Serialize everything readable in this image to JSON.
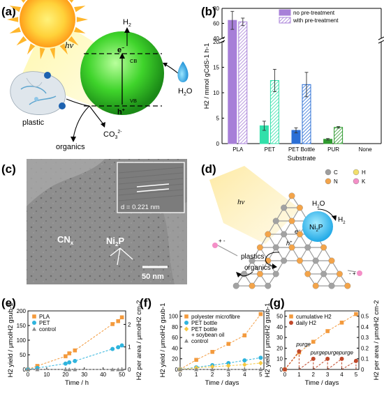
{
  "panels": {
    "a": {
      "label": "(a)",
      "hv": "hv",
      "h2": "H",
      "h2_sub": "2",
      "e": "e",
      "e_sup": "−",
      "cb": "CB",
      "vb": "VB",
      "h": "h",
      "h_sup": "+",
      "h2o": "H",
      "h2o_sub": "2",
      "h2o_tail": "O",
      "plastic": "plastic",
      "co3": "CO",
      "co3_sub": "3",
      "co3_sup": "2-",
      "organics": "organics"
    },
    "b": {
      "label": "(b)"
    },
    "c": {
      "label": "(c)",
      "cnx": "CN",
      "cnx_sub": "x",
      "ni2p": "Ni",
      "ni2p_sub": "2",
      "ni2p_tail": "P",
      "dspacing": "d = 0.221 nm",
      "scalebar": "50 nm"
    },
    "d": {
      "label": "(d)",
      "legend": [
        {
          "symbol": "C",
          "color": "#9e9e9e"
        },
        {
          "symbol": "H",
          "color": "#f2df6b"
        },
        {
          "symbol": "N",
          "color": "#f3a44a"
        },
        {
          "symbol": "K",
          "color": "#f48fc7"
        }
      ],
      "hv": "hv",
      "h2o": "H",
      "h2o_sub": "2",
      "h2o_tail": "O",
      "h2": "H",
      "h2_sub": "2",
      "ni2p": "Ni",
      "ni2p_sub": "2",
      "ni2p_tail": "P",
      "e": "e",
      "e_sup": "−",
      "h": "h",
      "h_sup": "+",
      "plastics": "plastics",
      "organics": "organics"
    },
    "e": {
      "label": "(e)"
    },
    "f": {
      "label": "(f)"
    },
    "g": {
      "label": "(g)",
      "purge": "purge"
    }
  },
  "chart_data": [
    {
      "id": "b",
      "type": "bar",
      "ylabel": "H2 / mmol gCdS-1 h-1",
      "xlabel": "Substrate",
      "categories": [
        "PLA",
        "PET",
        "PET Bottle",
        "PUR",
        "None"
      ],
      "y_break": [
        20,
        40
      ],
      "yticks": [
        0,
        5,
        10,
        15,
        20,
        40,
        60,
        80
      ],
      "series": [
        {
          "name": "no pre-treatment",
          "values": [
            64,
            3.5,
            2.6,
            0.85,
            0
          ],
          "errors": [
            12,
            0.9,
            0.5,
            0.15,
            0
          ]
        },
        {
          "name": "with pre-treatment",
          "values": [
            62,
            12.4,
            11.6,
            3.2,
            0
          ],
          "errors": [
            5,
            2.2,
            2.4,
            0.15,
            0
          ]
        }
      ],
      "colors": {
        "PLA": "#a77fd8",
        "PET": "#32e0aa",
        "PET Bottle": "#2b6fd6",
        "PUR": "#2f9a2f"
      }
    },
    {
      "id": "e",
      "type": "scatter",
      "xlabel": "Time / h",
      "ylabel": "H2 yield / μmolH2 gsub-1",
      "ylabel_right": "H2 per area / μmolH2 cm-2",
      "xlim": [
        0,
        52
      ],
      "ylim": [
        0,
        200
      ],
      "xticks": [
        0,
        10,
        20,
        30,
        40,
        50
      ],
      "yticks": [
        0,
        50,
        100,
        150,
        200
      ],
      "yticks_right": [
        0,
        1,
        2
      ],
      "series": [
        {
          "name": "PLA",
          "color": "#f39a3d",
          "marker": "square",
          "x": [
            0,
            5,
            20,
            22,
            25,
            45,
            48,
            50
          ],
          "y": [
            0,
            12,
            45,
            55,
            65,
            155,
            165,
            178
          ]
        },
        {
          "name": "PET",
          "color": "#2fb4dd",
          "marker": "circle",
          "x": [
            0,
            5,
            20,
            22,
            25,
            45,
            48,
            50
          ],
          "y": [
            0,
            5,
            20,
            24,
            29,
            70,
            76,
            82
          ]
        },
        {
          "name": "control",
          "color": "#8a8a8a",
          "marker": "triangle",
          "x": [
            0,
            5,
            20,
            22,
            25,
            45,
            48,
            50
          ],
          "y": [
            0,
            0,
            0,
            0,
            0,
            0,
            0,
            0
          ]
        }
      ]
    },
    {
      "id": "f",
      "type": "scatter",
      "xlabel": "Time / days",
      "ylabel": "H2 yield / μmolH2 gsub-1",
      "xlim": [
        0,
        5.2
      ],
      "ylim": [
        0,
        110
      ],
      "xticks": [
        0,
        1,
        2,
        3,
        4,
        5
      ],
      "yticks": [
        0,
        20,
        40,
        60,
        80,
        100
      ],
      "series": [
        {
          "name": "polyester microfibre",
          "color": "#f39a3d",
          "marker": "square",
          "x": [
            0,
            1,
            2,
            3,
            4,
            5
          ],
          "y": [
            0,
            18,
            33,
            48,
            64,
            104
          ]
        },
        {
          "name": "PET bottle",
          "color": "#2fb4dd",
          "marker": "circle",
          "x": [
            0,
            1,
            2,
            3,
            4,
            5
          ],
          "y": [
            0,
            4,
            8,
            12,
            17,
            22
          ]
        },
        {
          "name": "PET bottle + soybean oil",
          "color": "#f5c842",
          "marker": "diamond",
          "x": [
            0,
            1,
            2,
            3,
            4,
            5
          ],
          "y": [
            0,
            3,
            5,
            7,
            9,
            12
          ]
        },
        {
          "name": "control",
          "color": "#8a8a8a",
          "marker": "triangle",
          "x": [
            0,
            1,
            2,
            3,
            4,
            5
          ],
          "y": [
            0,
            0,
            0,
            0,
            0,
            0
          ]
        }
      ]
    },
    {
      "id": "g",
      "type": "scatter",
      "xlabel": "Time / days",
      "ylabel": "H2 yield / μmolH2 gsub-1",
      "ylabel_right": "H2 per area / μmolH2 cm-2",
      "xlim": [
        0,
        5.2
      ],
      "ylim": [
        0,
        55
      ],
      "xticks": [
        0,
        1,
        2,
        3,
        4,
        5
      ],
      "yticks": [
        0,
        10,
        20,
        30,
        40,
        50
      ],
      "yticks_right": [
        0.0,
        0.1,
        0.2,
        0.3,
        0.4,
        0.5
      ],
      "series": [
        {
          "name": "cumulative H2",
          "color": "#f39a3d",
          "marker": "square",
          "x": [
            0,
            1,
            2,
            3,
            4,
            5
          ],
          "y": [
            0,
            16,
            26,
            36,
            44,
            52
          ]
        },
        {
          "name": "daily H2",
          "color": "#c0482a",
          "marker": "circle",
          "x": [
            0,
            1,
            2,
            3,
            4,
            5
          ],
          "y": [
            0,
            17,
            10,
            10,
            10,
            8
          ]
        }
      ]
    }
  ]
}
